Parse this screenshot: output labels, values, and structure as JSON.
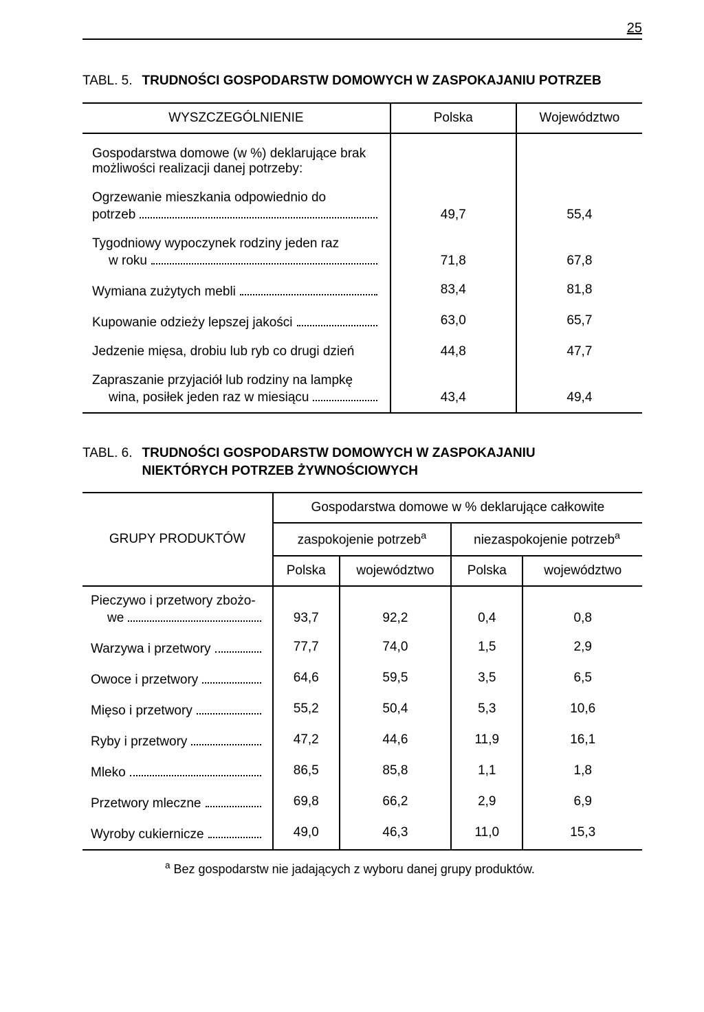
{
  "page_number": "25",
  "table5": {
    "label": "TABL. 5.",
    "caption": "TRUDNOŚCI GOSPODARSTW DOMOWYCH W ZASPOKAJANIU POTRZEB",
    "headers": {
      "c1": "WYSZCZEGÓLNIENIE",
      "c2": "Polska",
      "c3": "Województwo"
    },
    "section_label_a": "Gospodarstwa domowe (w %) deklarujące brak",
    "section_label_b": "możliwości realizacji danej potrzeby:",
    "rows": [
      {
        "label_a": "Ogrzewanie mieszkania odpowiednio do",
        "label_b": "potrzeb",
        "indent": false,
        "v1": "49,7",
        "v2": "55,4"
      },
      {
        "label_a": "Tygodniowy wypoczynek rodziny jeden raz",
        "label_b": "w roku",
        "indent": true,
        "v1": "71,8",
        "v2": "67,8"
      },
      {
        "label": "Wymiana zużytych mebli",
        "v1": "83,4",
        "v2": "81,8"
      },
      {
        "label": "Kupowanie odzieży lepszej jakości",
        "v1": "63,0",
        "v2": "65,7"
      },
      {
        "label": "Jedzenie mięsa, drobiu lub ryb co drugi dzień",
        "nodots": true,
        "v1": "44,8",
        "v2": "47,7"
      },
      {
        "label_a": "Zapraszanie przyjaciół lub rodziny na lampkę",
        "label_b": "wina, posiłek jeden raz w miesiącu",
        "indent": true,
        "v1": "43,4",
        "v2": "49,4"
      }
    ]
  },
  "table6": {
    "label": "TABL. 6.",
    "caption_a": "TRUDNOŚCI GOSPODARSTW DOMOWYCH W ZASPOKAJANIU",
    "caption_b": "NIEKTÓRYCH POTRZEB ŻYWNOŚCIOWYCH",
    "headers": {
      "r1c1": "GRUPY PRODUKTÓW",
      "r1_span": "Gospodarstwa domowe w % deklarujące całkowite",
      "r2c2": "zaspokojenie potrzeb",
      "r2c3": "niezaspokojenie potrzeb",
      "sup": "a",
      "r3a": "Polska",
      "r3b": "województwo",
      "r3c": "Polska",
      "r3d": "województwo"
    },
    "rows": [
      {
        "label_a": "Pieczywo i przetwory zbożo-",
        "label_b": "we",
        "indent": true,
        "v1": "93,7",
        "v2": "92,2",
        "v3": "0,4",
        "v4": "0,8"
      },
      {
        "label": "Warzywa i przetwory",
        "v1": "77,7",
        "v2": "74,0",
        "v3": "1,5",
        "v4": "2,9"
      },
      {
        "label": "Owoce i przetwory",
        "v1": "64,6",
        "v2": "59,5",
        "v3": "3,5",
        "v4": "6,5"
      },
      {
        "label": "Mięso i przetwory",
        "v1": "55,2",
        "v2": "50,4",
        "v3": "5,3",
        "v4": "10,6"
      },
      {
        "label": "Ryby i przetwory",
        "v1": "47,2",
        "v2": "44,6",
        "v3": "11,9",
        "v4": "16,1"
      },
      {
        "label": "Mleko",
        "v1": "86,5",
        "v2": "85,8",
        "v3": "1,1",
        "v4": "1,8"
      },
      {
        "label": "Przetwory mleczne",
        "v1": "69,8",
        "v2": "66,2",
        "v3": "2,9",
        "v4": "6,9"
      },
      {
        "label": "Wyroby cukiernicze",
        "v1": "49,0",
        "v2": "46,3",
        "v3": "11,0",
        "v4": "15,3"
      }
    ],
    "footnote_sup": "a",
    "footnote": " Bez gospodarstw nie jadających z wyboru danej grupy produktów."
  }
}
